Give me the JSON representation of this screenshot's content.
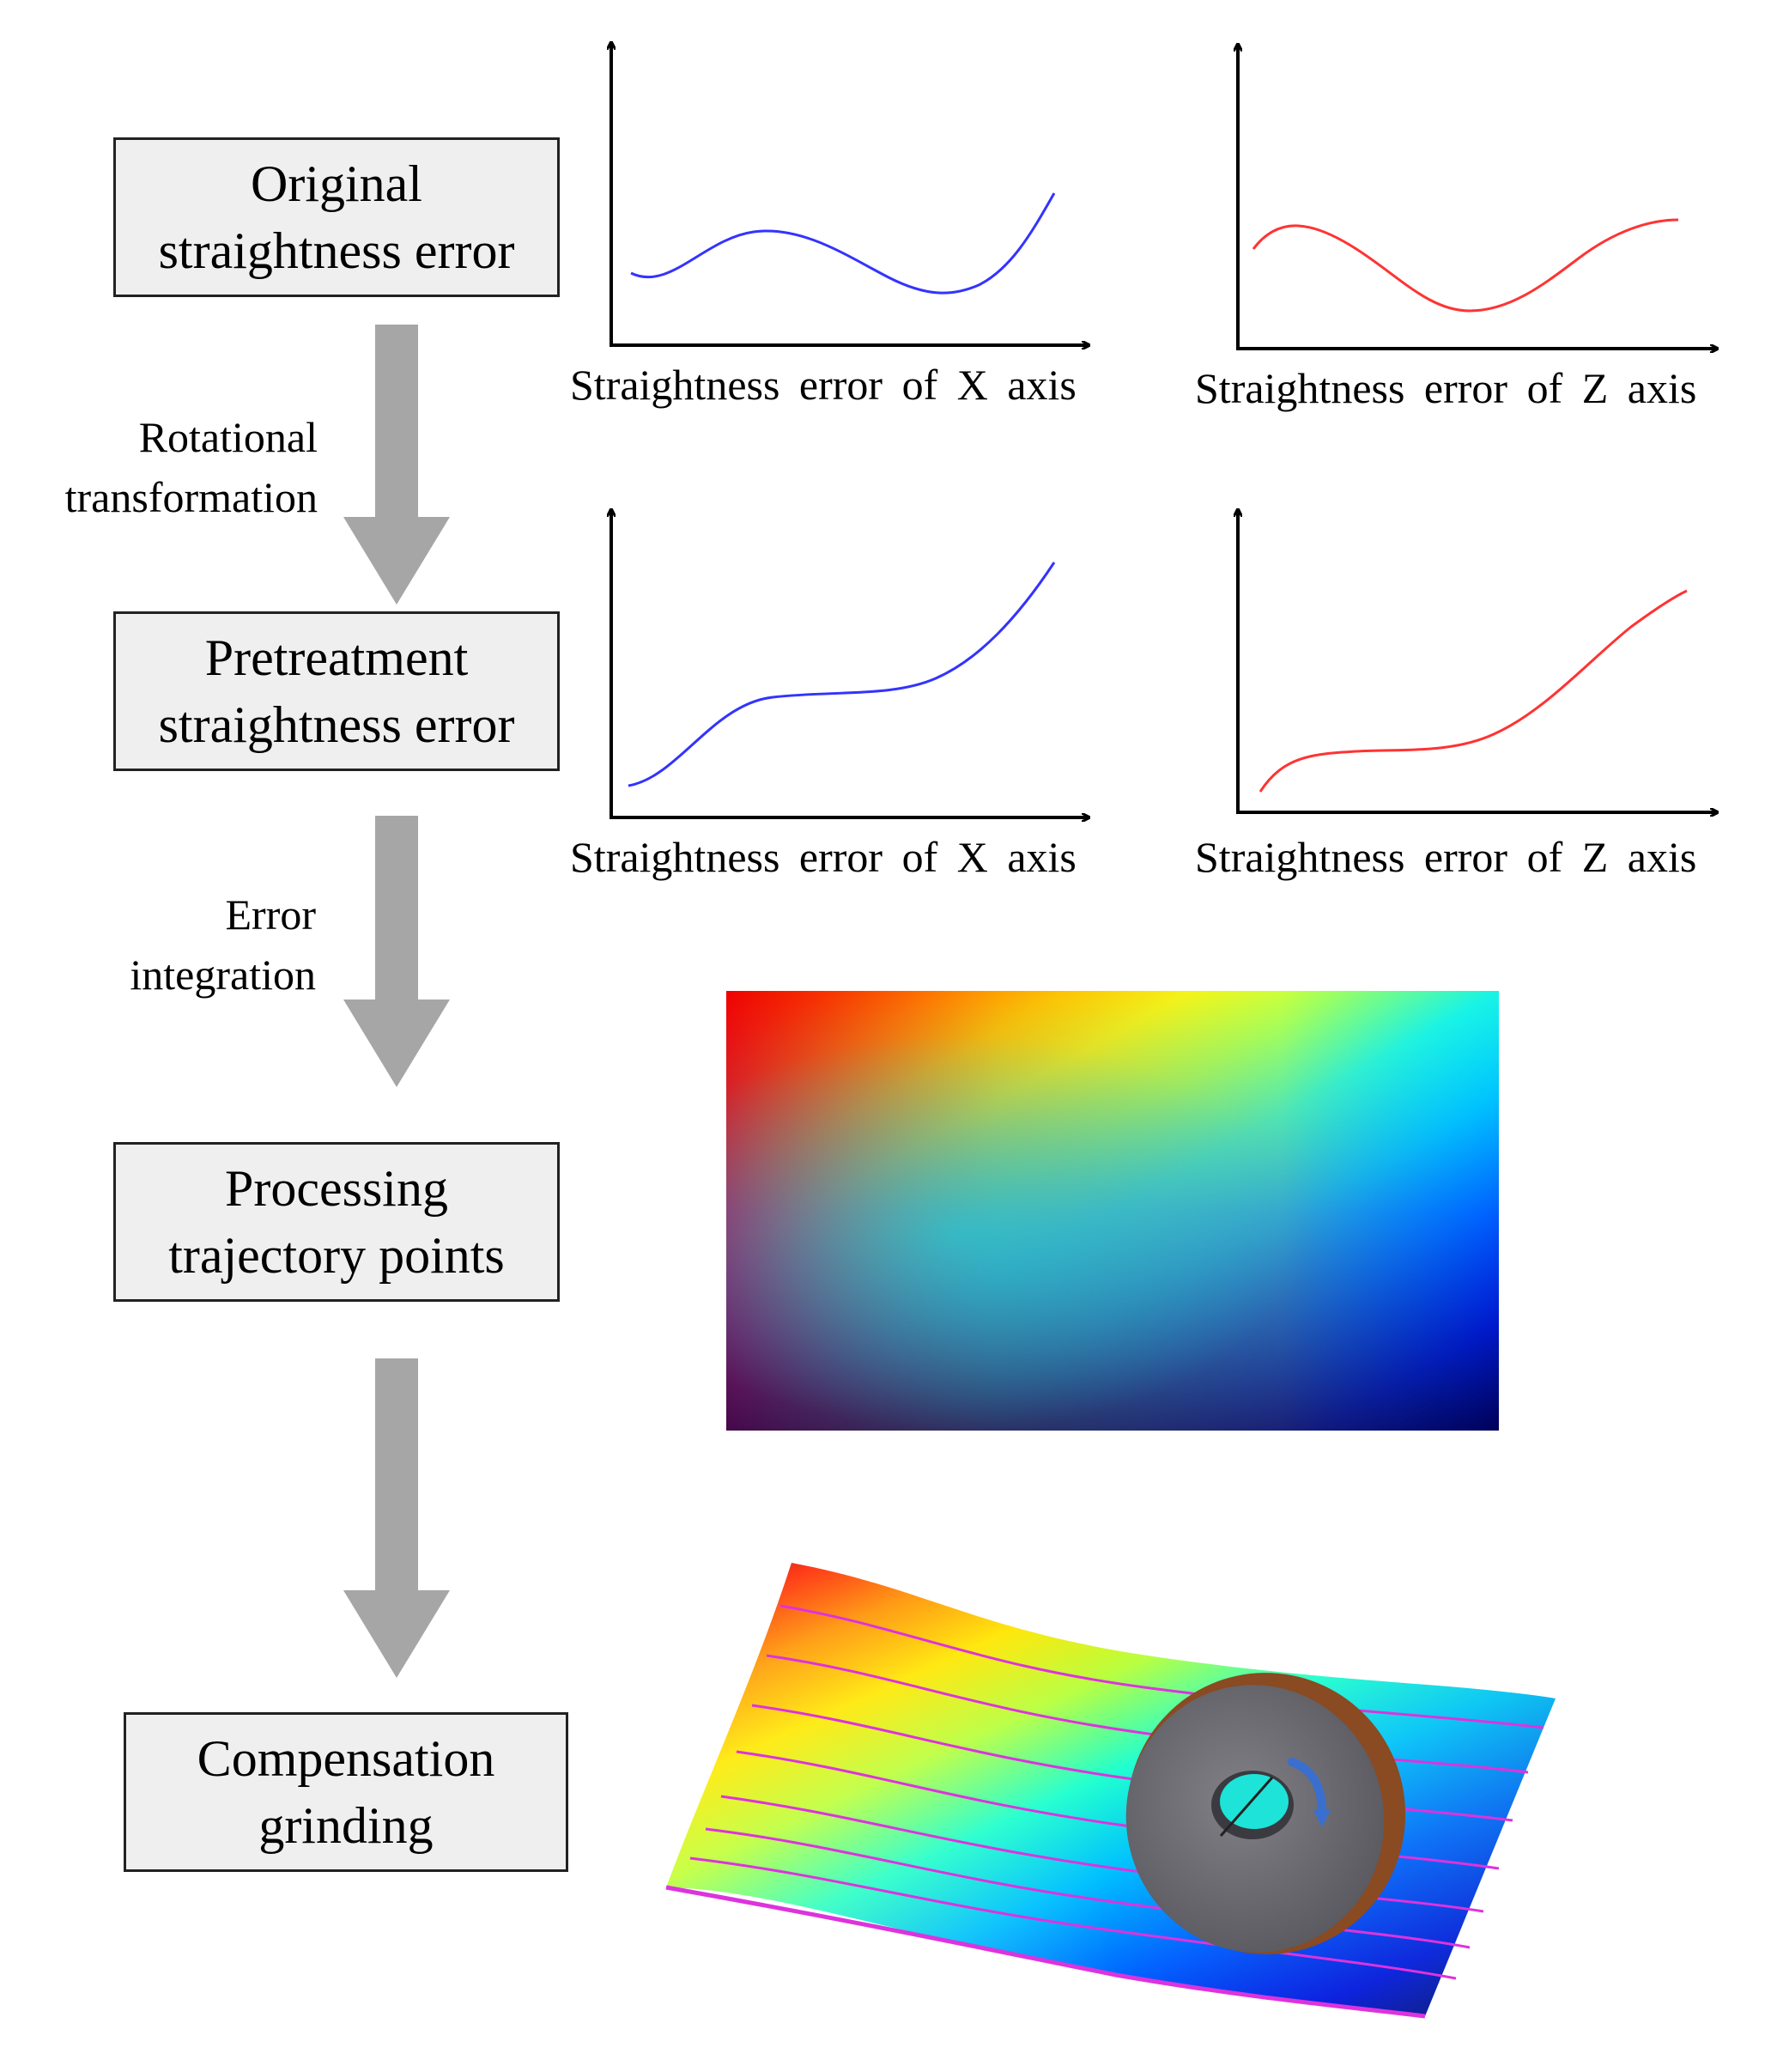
{
  "steps": [
    {
      "line1": "Original",
      "line2": "straightness error"
    },
    {
      "line1": "Pretreatment",
      "line2": "straightness error"
    },
    {
      "line1": "Processing",
      "line2": "trajectory points"
    },
    {
      "line1": "Compensation",
      "line2": "grinding"
    }
  ],
  "transitions": [
    {
      "line1": "Rotational",
      "line2": "transformation"
    },
    {
      "line1": "Error",
      "line2": "integration"
    },
    {
      "line1": "",
      "line2": ""
    }
  ],
  "plots": {
    "original_x_label": "Straightness error of X axis",
    "original_z_label": "Straightness error of Z axis",
    "pretreat_x_label": "Straightness error of X axis",
    "pretreat_z_label": "Straightness error of Z axis"
  },
  "colors": {
    "x_curve": "#3333ff",
    "z_curve": "#ff3333",
    "box_fill": "#efefef",
    "arrow_fill": "#a6a6a6",
    "trajectory_lines": "#dd33dd",
    "wheel_rim": "#8a4a22",
    "wheel_face": "#6f6f74"
  },
  "icons": {
    "error_map": "jet-colormap-surface-image",
    "grinding": "grinding-wheel-on-surface-image"
  }
}
